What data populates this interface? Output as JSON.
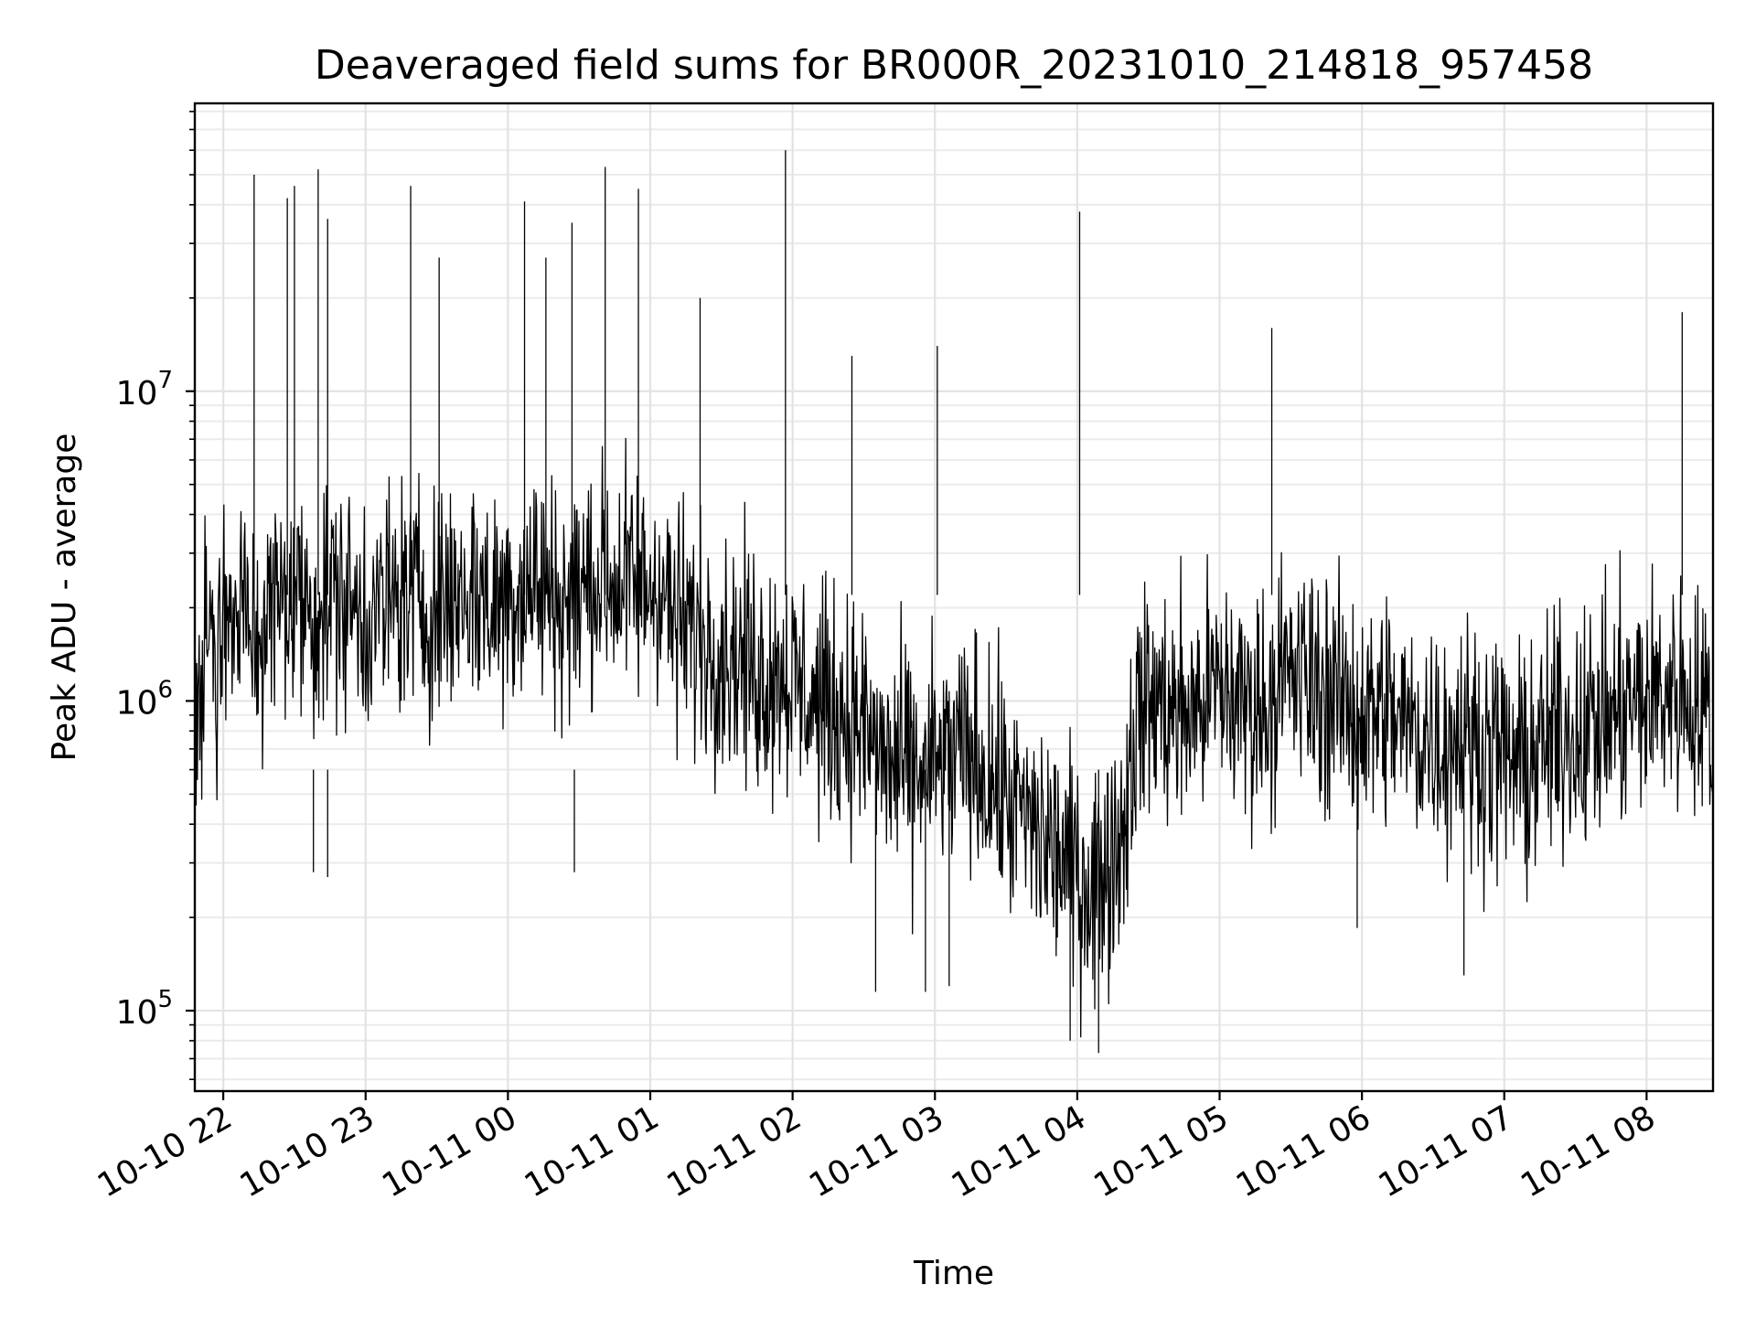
{
  "chart_data": {
    "type": "line",
    "title": "Deaveraged field sums for BR000R_20231010_214818_957458",
    "xlabel": "Time",
    "ylabel": "Peak ADU - average",
    "y_scale": "log",
    "ylim": [
      55000,
      85000000
    ],
    "xlim": [
      "2023-10-10 21:48",
      "2023-10-11 08:28"
    ],
    "x_ticks": [
      {
        "t": "2023-10-10 22:00",
        "label": "10-10 22"
      },
      {
        "t": "2023-10-10 23:00",
        "label": "10-10 23"
      },
      {
        "t": "2023-10-11 00:00",
        "label": "10-11 00"
      },
      {
        "t": "2023-10-11 01:00",
        "label": "10-11 01"
      },
      {
        "t": "2023-10-11 02:00",
        "label": "10-11 02"
      },
      {
        "t": "2023-10-11 03:00",
        "label": "10-11 03"
      },
      {
        "t": "2023-10-11 04:00",
        "label": "10-11 04"
      },
      {
        "t": "2023-10-11 05:00",
        "label": "10-11 05"
      },
      {
        "t": "2023-10-11 06:00",
        "label": "10-11 06"
      },
      {
        "t": "2023-10-11 07:00",
        "label": "10-11 07"
      },
      {
        "t": "2023-10-11 08:00",
        "label": "10-11 08"
      }
    ],
    "y_ticks": [
      {
        "value": 100000,
        "base": "10",
        "exp": "5"
      },
      {
        "value": 1000000,
        "base": "10",
        "exp": "6"
      },
      {
        "value": 10000000,
        "base": "10",
        "exp": "7"
      }
    ],
    "grid": true,
    "line_color": "#000000",
    "series": [
      {
        "x": [
          "2023-10-10 21:48",
          "2023-10-10 21:55",
          "2023-10-10 22:02",
          "2023-10-10 22:08",
          "2023-10-10 22:15",
          "2023-10-10 22:21",
          "2023-10-10 22:28",
          "2023-10-10 22:34",
          "2023-10-10 22:41",
          "2023-10-10 22:47",
          "2023-10-10 22:54",
          "2023-10-10 23:00",
          "2023-10-10 23:07",
          "2023-10-10 23:13",
          "2023-10-10 23:20",
          "2023-10-10 23:26",
          "2023-10-10 23:33",
          "2023-10-10 23:39",
          "2023-10-10 23:46",
          "2023-10-10 23:52",
          "2023-10-10 23:59",
          "2023-10-11 00:05",
          "2023-10-11 00:12",
          "2023-10-11 00:18",
          "2023-10-11 00:25",
          "2023-10-11 00:31",
          "2023-10-11 00:38",
          "2023-10-11 00:44",
          "2023-10-11 00:51",
          "2023-10-11 00:57",
          "2023-10-11 01:04",
          "2023-10-11 01:10",
          "2023-10-11 01:17",
          "2023-10-11 01:23",
          "2023-10-11 01:30",
          "2023-10-11 01:36",
          "2023-10-11 01:43",
          "2023-10-11 01:49",
          "2023-10-11 01:56",
          "2023-10-11 02:02",
          "2023-10-11 02:09",
          "2023-10-11 02:15",
          "2023-10-11 02:22",
          "2023-10-11 02:28",
          "2023-10-11 02:35",
          "2023-10-11 02:41",
          "2023-10-11 02:48",
          "2023-10-11 02:54",
          "2023-10-11 03:01",
          "2023-10-11 03:07",
          "2023-10-11 03:14",
          "2023-10-11 03:20",
          "2023-10-11 03:27",
          "2023-10-11 03:33",
          "2023-10-11 03:40",
          "2023-10-11 03:46",
          "2023-10-11 03:53",
          "2023-10-11 03:59",
          "2023-10-11 04:06",
          "2023-10-11 04:12",
          "2023-10-11 04:19",
          "2023-10-11 04:25",
          "2023-10-11 04:32",
          "2023-10-11 04:38",
          "2023-10-11 04:45",
          "2023-10-11 04:51",
          "2023-10-11 04:58",
          "2023-10-11 05:04",
          "2023-10-11 05:11",
          "2023-10-11 05:17",
          "2023-10-11 05:24",
          "2023-10-11 05:30",
          "2023-10-11 05:37",
          "2023-10-11 05:43",
          "2023-10-11 05:50",
          "2023-10-11 05:56",
          "2023-10-11 06:03",
          "2023-10-11 06:09",
          "2023-10-11 06:16",
          "2023-10-11 06:22",
          "2023-10-11 06:29",
          "2023-10-11 06:35",
          "2023-10-11 06:42",
          "2023-10-11 06:48",
          "2023-10-11 06:55",
          "2023-10-11 07:01",
          "2023-10-11 07:08",
          "2023-10-11 07:14",
          "2023-10-11 07:21",
          "2023-10-11 07:27",
          "2023-10-11 07:34",
          "2023-10-11 07:40",
          "2023-10-11 07:47",
          "2023-10-11 07:53",
          "2023-10-11 08:00",
          "2023-10-11 08:06",
          "2023-10-11 08:13",
          "2023-10-11 08:19",
          "2023-10-11 08:26"
        ],
        "y": [
          1100000,
          1400000,
          1500000,
          1900000,
          1600000,
          2000000,
          2200000,
          2100000,
          1900000,
          2300000,
          2000000,
          1900000,
          2000000,
          2100000,
          2200000,
          2000000,
          2100000,
          2200000,
          2300000,
          2000000,
          2200000,
          2300000,
          2400000,
          2200000,
          2100000,
          2300000,
          2500000,
          2400000,
          2400000,
          2300000,
          2500000,
          1800000,
          1700000,
          1600000,
          1500000,
          1400000,
          1300000,
          1200000,
          1300000,
          1100000,
          1000000,
          950000,
          900000,
          850000,
          700000,
          620000,
          600000,
          580000,
          620000,
          650000,
          680000,
          600000,
          520000,
          450000,
          400000,
          350000,
          320000,
          280000,
          250000,
          300000,
          380000,
          900000,
          1000000,
          950000,
          900000,
          980000,
          1100000,
          1050000,
          1000000,
          950000,
          1100000,
          1200000,
          1150000,
          1100000,
          1000000,
          950000,
          900000,
          950000,
          850000,
          800000,
          780000,
          750000,
          800000,
          720000,
          700000,
          650000,
          600000,
          680000,
          750000,
          800000,
          820000,
          850000,
          900000,
          950000,
          1000000,
          1050000,
          1100000,
          1000000,
          900000
        ]
      }
    ],
    "spikes": [
      {
        "t": "2023-10-10 22:13",
        "y": 50000000
      },
      {
        "t": "2023-10-10 22:27",
        "y": 42000000
      },
      {
        "t": "2023-10-10 22:30",
        "y": 46000000
      },
      {
        "t": "2023-10-10 22:40",
        "y": 52000000
      },
      {
        "t": "2023-10-10 22:44",
        "y": 36000000
      },
      {
        "t": "2023-10-10 23:19",
        "y": 46000000
      },
      {
        "t": "2023-10-10 23:31",
        "y": 27000000
      },
      {
        "t": "2023-10-11 00:07",
        "y": 41000000
      },
      {
        "t": "2023-10-11 00:16",
        "y": 27000000
      },
      {
        "t": "2023-10-11 00:27",
        "y": 35000000
      },
      {
        "t": "2023-10-11 00:41",
        "y": 53000000
      },
      {
        "t": "2023-10-11 00:55",
        "y": 45000000
      },
      {
        "t": "2023-10-11 01:21",
        "y": 20000000
      },
      {
        "t": "2023-10-11 01:57",
        "y": 60000000
      },
      {
        "t": "2023-10-11 02:25",
        "y": 13000000
      },
      {
        "t": "2023-10-11 03:01",
        "y": 14000000
      },
      {
        "t": "2023-10-11 04:01",
        "y": 38000000
      },
      {
        "t": "2023-10-11 05:22",
        "y": 16000000
      },
      {
        "t": "2023-10-11 08:15",
        "y": 18000000
      }
    ],
    "dips": [
      {
        "t": "2023-10-10 22:38",
        "y": 280000
      },
      {
        "t": "2023-10-10 22:44",
        "y": 270000
      },
      {
        "t": "2023-10-11 00:28",
        "y": 280000
      },
      {
        "t": "2023-10-11 02:35",
        "y": 115000
      },
      {
        "t": "2023-10-11 02:56",
        "y": 115000
      },
      {
        "t": "2023-10-11 03:06",
        "y": 120000
      },
      {
        "t": "2023-10-11 03:57",
        "y": 80000
      },
      {
        "t": "2023-10-11 04:09",
        "y": 73000
      },
      {
        "t": "2023-10-11 05:58",
        "y": 185000
      },
      {
        "t": "2023-10-11 06:43",
        "y": 130000
      }
    ]
  }
}
